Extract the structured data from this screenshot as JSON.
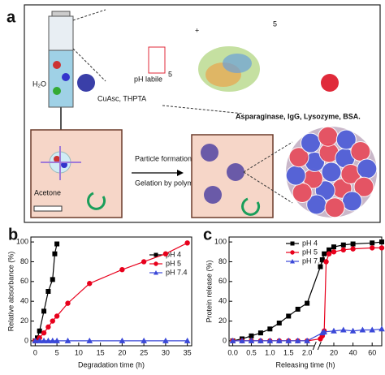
{
  "figure": {
    "panel_a": {
      "label": "a",
      "water": "H₂O",
      "catalyst": "CuAsc, THPTA",
      "linker": "pH labile",
      "repeat": "5",
      "plus": "+",
      "repeat2": "5",
      "proteins": "Asparaginase, IgG, Lysozyme, BSA.",
      "step1": "Particle formation",
      "step2": "Gelation by polymer upconcentration",
      "solvent": "Acetone"
    }
  },
  "chart_data": [
    {
      "type": "line",
      "label": "b",
      "xlabel": "Degradation time (h)",
      "ylabel": "Relative absorbance (%)",
      "xlim": [
        -1,
        36
      ],
      "xticks": [
        0,
        5,
        10,
        15,
        20,
        25,
        30,
        35
      ],
      "ylim": [
        -5,
        105
      ],
      "yticks": [
        0,
        20,
        40,
        60,
        80,
        100
      ],
      "legend": "upper right",
      "series": [
        {
          "name": "pH 4",
          "color": "#000000",
          "marker": "square",
          "x": [
            0,
            0.5,
            1,
            2,
            3,
            4,
            4.5,
            5
          ],
          "values": [
            0,
            3,
            10,
            30,
            50,
            62,
            88,
            98
          ]
        },
        {
          "name": "pH 5",
          "color": "#e8001c",
          "marker": "circle",
          "x": [
            0,
            1,
            2,
            3,
            4,
            5,
            7.5,
            12.5,
            20,
            25,
            30,
            35
          ],
          "values": [
            0,
            3,
            8,
            14,
            20,
            25,
            38,
            58,
            72,
            80,
            88,
            99
          ]
        },
        {
          "name": "pH 7.4",
          "color": "#3b49d8",
          "marker": "triangle",
          "x": [
            0,
            1,
            2,
            3,
            4,
            5,
            7.5,
            12.5,
            20,
            25,
            30,
            35
          ],
          "values": [
            0,
            0,
            0,
            0,
            0,
            0,
            0,
            0,
            0,
            0,
            0,
            0
          ]
        }
      ]
    },
    {
      "type": "line",
      "label": "c",
      "xlabel": "Releasing time (h)",
      "ylabel": "Protein release (%)",
      "xlim": [
        -0.1,
        70
      ],
      "xbreak": [
        2.2,
        5
      ],
      "xticks": [
        {
          "value": 0,
          "label": "0.0"
        },
        {
          "value": 0.5,
          "label": "0.5"
        },
        {
          "value": 1,
          "label": "1.0"
        },
        {
          "value": 1.5,
          "label": "1.5"
        },
        {
          "value": 2,
          "label": "2.0"
        },
        20,
        40,
        60
      ],
      "ylim": [
        -5,
        105
      ],
      "yticks": [
        0,
        20,
        40,
        60,
        80,
        100
      ],
      "legend": "upper left",
      "series": [
        {
          "name": "pH 4",
          "color": "#000000",
          "marker": "square",
          "x": [
            0,
            0.25,
            0.5,
            0.75,
            1,
            1.25,
            1.5,
            1.75,
            2,
            6,
            8,
            10,
            15,
            20,
            30,
            40,
            60,
            70
          ],
          "values": [
            0,
            2,
            5,
            8,
            12,
            18,
            25,
            32,
            38,
            75,
            82,
            88,
            92,
            95,
            97,
            98,
            99,
            100
          ]
        },
        {
          "name": "pH 5",
          "color": "#e8001c",
          "marker": "circle",
          "x": [
            0,
            0.25,
            0.5,
            0.75,
            1,
            1.25,
            1.5,
            1.75,
            2,
            6,
            8,
            10,
            12,
            15,
            20,
            30,
            40,
            60,
            70
          ],
          "values": [
            0,
            0,
            0,
            0,
            0,
            0,
            0,
            0,
            0,
            2,
            5,
            10,
            80,
            88,
            90,
            92,
            93,
            94,
            94
          ]
        },
        {
          "name": "pH 7.4",
          "color": "#3b49d8",
          "marker": "triangle",
          "x": [
            0,
            0.25,
            0.5,
            0.75,
            1,
            1.25,
            1.5,
            1.75,
            2,
            8,
            10,
            20,
            30,
            40,
            50,
            60,
            70
          ],
          "values": [
            0,
            0,
            0,
            0,
            0,
            0,
            0,
            0,
            0,
            8,
            9,
            10,
            11,
            10,
            11,
            11,
            12
          ]
        }
      ]
    }
  ]
}
